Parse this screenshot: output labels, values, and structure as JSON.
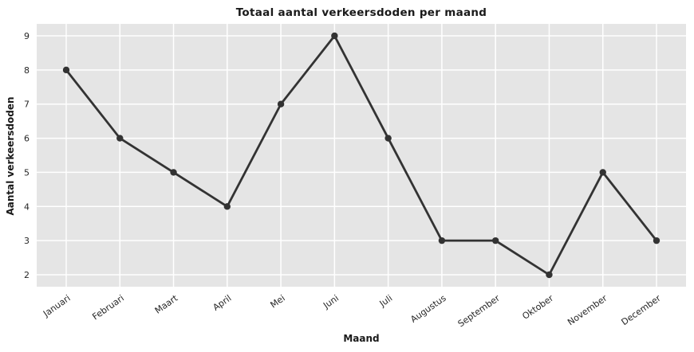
{
  "chart_data": {
    "type": "line",
    "title": "Totaal aantal verkeersdoden per maand",
    "xlabel": "Maand",
    "ylabel": "Aantal verkeersdoden",
    "categories": [
      "Januari",
      "Februari",
      "Maart",
      "April",
      "Mei",
      "Juni",
      "Juli",
      "Augustus",
      "September",
      "Oktober",
      "November",
      "December"
    ],
    "values": [
      8,
      6,
      5,
      4,
      7,
      9,
      6,
      3,
      3,
      2,
      5,
      3
    ],
    "yticks": [
      2,
      3,
      4,
      5,
      6,
      7,
      8,
      9
    ],
    "ylim": [
      1.65,
      9.35
    ],
    "grid": true,
    "legend_position": "none",
    "xtick_rotation_deg": 35,
    "style": {
      "figure_bg": "#ffffff",
      "plot_bg": "#e5e5e5",
      "grid_color": "#ffffff",
      "line_color": "#333333",
      "marker_color": "#333333",
      "tick_text_color": "#262626",
      "label_text_color": "#1a1a1a"
    }
  }
}
